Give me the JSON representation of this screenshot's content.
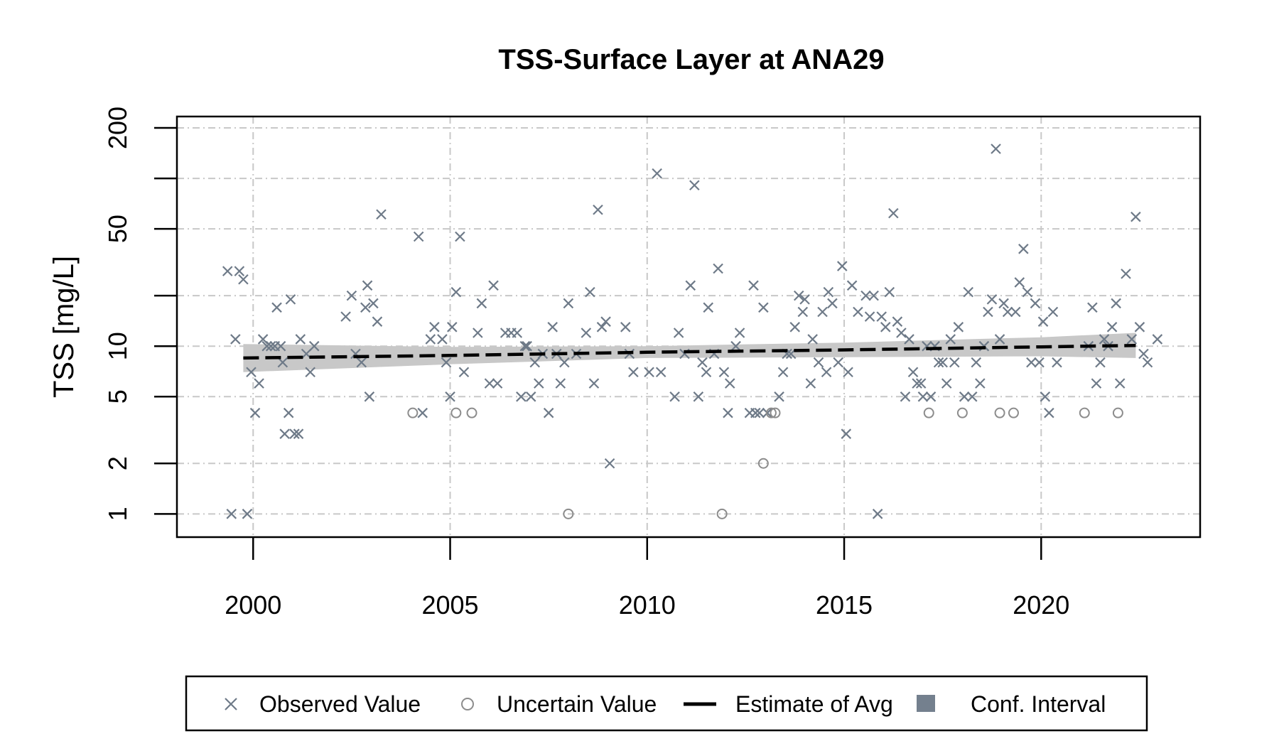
{
  "chart_data": {
    "type": "scatter",
    "title": "TSS-Surface Layer at ANA29",
    "xlabel": "",
    "ylabel": "TSS [mg/L]",
    "y_scale": "log",
    "xlim": [
      1998.3,
      2023.8
    ],
    "ylim": [
      0.85,
      200
    ],
    "x_ticks": [
      2000,
      2005,
      2010,
      2015,
      2020
    ],
    "x_tick_labels": [
      "2000",
      "2005",
      "2010",
      "2015",
      "2020"
    ],
    "y_ticks": [
      1,
      2,
      5,
      10,
      50,
      200
    ],
    "y_tick_labels": [
      "1",
      "2",
      "5",
      "10",
      "50",
      "200"
    ],
    "y_grid_lines": [
      1,
      2,
      5,
      10,
      20,
      50,
      100,
      200
    ],
    "grid": true,
    "legend_position": "bottom",
    "colors": {
      "observed": "#6e7a88",
      "uncertain": "#8c8c8c",
      "estimate": "#000000",
      "ci_band": "#c8c8c8",
      "ci_legend": "#74808e",
      "grid": "#c8c8c8"
    },
    "legend": [
      {
        "key": "observed",
        "label": "Observed Value",
        "symbol": "x"
      },
      {
        "key": "uncertain",
        "label": "Uncertain Value",
        "symbol": "circle"
      },
      {
        "key": "estimate",
        "label": "Estimate of Avg",
        "symbol": "dashed-line"
      },
      {
        "key": "ci",
        "label": "Conf. Interval",
        "symbol": "square"
      }
    ],
    "series": [
      {
        "name": "Observed Value",
        "marker": "x",
        "points": [
          [
            1999.35,
            28
          ],
          [
            1999.45,
            1
          ],
          [
            1999.55,
            11
          ],
          [
            1999.65,
            28
          ],
          [
            1999.75,
            25
          ],
          [
            1999.85,
            1
          ],
          [
            1999.95,
            7
          ],
          [
            2000.05,
            4
          ],
          [
            2000.15,
            6
          ],
          [
            2000.25,
            11
          ],
          [
            2000.35,
            10
          ],
          [
            2000.45,
            10
          ],
          [
            2000.55,
            10
          ],
          [
            2000.6,
            17
          ],
          [
            2000.7,
            10
          ],
          [
            2000.75,
            8
          ],
          [
            2000.8,
            3
          ],
          [
            2000.9,
            4
          ],
          [
            2000.95,
            19
          ],
          [
            2001.05,
            3
          ],
          [
            2001.15,
            3
          ],
          [
            2001.2,
            11
          ],
          [
            2001.35,
            9
          ],
          [
            2001.45,
            7
          ],
          [
            2001.55,
            10
          ],
          [
            2002.35,
            15
          ],
          [
            2002.5,
            20
          ],
          [
            2002.6,
            9
          ],
          [
            2002.75,
            8
          ],
          [
            2002.85,
            17
          ],
          [
            2002.9,
            23
          ],
          [
            2002.95,
            5
          ],
          [
            2003.05,
            18
          ],
          [
            2003.15,
            14
          ],
          [
            2003.25,
            61
          ],
          [
            2004.2,
            45
          ],
          [
            2004.3,
            4
          ],
          [
            2004.5,
            11
          ],
          [
            2004.6,
            13
          ],
          [
            2004.8,
            11
          ],
          [
            2004.9,
            8
          ],
          [
            2005.0,
            5
          ],
          [
            2005.05,
            13
          ],
          [
            2005.15,
            21
          ],
          [
            2005.25,
            45
          ],
          [
            2005.35,
            7
          ],
          [
            2005.7,
            12
          ],
          [
            2005.8,
            18
          ],
          [
            2006.0,
            6
          ],
          [
            2006.1,
            23
          ],
          [
            2006.2,
            6
          ],
          [
            2006.4,
            12
          ],
          [
            2006.55,
            12
          ],
          [
            2006.7,
            12
          ],
          [
            2006.8,
            5
          ],
          [
            2006.9,
            10
          ],
          [
            2006.95,
            10
          ],
          [
            2007.05,
            5
          ],
          [
            2007.15,
            8
          ],
          [
            2007.25,
            6
          ],
          [
            2007.35,
            9
          ],
          [
            2007.5,
            4
          ],
          [
            2007.6,
            13
          ],
          [
            2007.7,
            9
          ],
          [
            2007.8,
            6
          ],
          [
            2007.9,
            8
          ],
          [
            2008.0,
            18
          ],
          [
            2008.2,
            9
          ],
          [
            2008.45,
            12
          ],
          [
            2008.55,
            21
          ],
          [
            2008.65,
            6
          ],
          [
            2008.75,
            65
          ],
          [
            2008.85,
            13
          ],
          [
            2008.95,
            14
          ],
          [
            2009.05,
            2
          ],
          [
            2009.45,
            13
          ],
          [
            2009.55,
            9
          ],
          [
            2009.65,
            7
          ],
          [
            2010.05,
            7
          ],
          [
            2010.25,
            107
          ],
          [
            2010.35,
            7
          ],
          [
            2010.7,
            5
          ],
          [
            2010.8,
            12
          ],
          [
            2010.95,
            9
          ],
          [
            2011.1,
            23
          ],
          [
            2011.2,
            91
          ],
          [
            2011.3,
            5
          ],
          [
            2011.4,
            8
          ],
          [
            2011.5,
            7
          ],
          [
            2011.55,
            17
          ],
          [
            2011.7,
            9
          ],
          [
            2011.8,
            29
          ],
          [
            2011.95,
            7
          ],
          [
            2012.05,
            4
          ],
          [
            2012.1,
            6
          ],
          [
            2012.25,
            10
          ],
          [
            2012.35,
            12
          ],
          [
            2012.6,
            4
          ],
          [
            2012.7,
            23
          ],
          [
            2012.75,
            4
          ],
          [
            2012.85,
            4
          ],
          [
            2012.95,
            17
          ],
          [
            2013.05,
            4
          ],
          [
            2013.35,
            5
          ],
          [
            2013.45,
            7
          ],
          [
            2013.55,
            9
          ],
          [
            2013.65,
            9
          ],
          [
            2013.75,
            13
          ],
          [
            2013.85,
            20
          ],
          [
            2013.95,
            16
          ],
          [
            2014.0,
            19
          ],
          [
            2014.15,
            6
          ],
          [
            2014.2,
            11
          ],
          [
            2014.35,
            8
          ],
          [
            2014.45,
            16
          ],
          [
            2014.55,
            7
          ],
          [
            2014.6,
            21
          ],
          [
            2014.7,
            18
          ],
          [
            2014.85,
            8
          ],
          [
            2014.95,
            30
          ],
          [
            2015.05,
            3
          ],
          [
            2015.1,
            7
          ],
          [
            2015.2,
            23
          ],
          [
            2015.35,
            16
          ],
          [
            2015.55,
            20
          ],
          [
            2015.65,
            15
          ],
          [
            2015.75,
            20
          ],
          [
            2015.85,
            1
          ],
          [
            2015.95,
            15
          ],
          [
            2016.05,
            13
          ],
          [
            2016.15,
            21
          ],
          [
            2016.25,
            62
          ],
          [
            2016.35,
            14
          ],
          [
            2016.45,
            12
          ],
          [
            2016.55,
            5
          ],
          [
            2016.65,
            11
          ],
          [
            2016.75,
            7
          ],
          [
            2016.85,
            6
          ],
          [
            2016.95,
            6
          ],
          [
            2017.0,
            5
          ],
          [
            2017.1,
            10
          ],
          [
            2017.2,
            5
          ],
          [
            2017.3,
            10
          ],
          [
            2017.4,
            8
          ],
          [
            2017.5,
            8
          ],
          [
            2017.6,
            6
          ],
          [
            2017.7,
            11
          ],
          [
            2017.8,
            8
          ],
          [
            2017.9,
            13
          ],
          [
            2018.05,
            5
          ],
          [
            2018.15,
            21
          ],
          [
            2018.25,
            5
          ],
          [
            2018.35,
            8
          ],
          [
            2018.45,
            6
          ],
          [
            2018.55,
            10
          ],
          [
            2018.65,
            16
          ],
          [
            2018.75,
            19
          ],
          [
            2018.85,
            150
          ],
          [
            2018.95,
            11
          ],
          [
            2019.05,
            18
          ],
          [
            2019.15,
            16
          ],
          [
            2019.35,
            16
          ],
          [
            2019.45,
            24
          ],
          [
            2019.55,
            38
          ],
          [
            2019.65,
            21
          ],
          [
            2019.75,
            8
          ],
          [
            2019.85,
            18
          ],
          [
            2019.95,
            8
          ],
          [
            2020.05,
            14
          ],
          [
            2020.1,
            5
          ],
          [
            2020.2,
            4
          ],
          [
            2020.3,
            16
          ],
          [
            2020.4,
            8
          ],
          [
            2021.2,
            10
          ],
          [
            2021.3,
            17
          ],
          [
            2021.4,
            6
          ],
          [
            2021.5,
            8
          ],
          [
            2021.6,
            11
          ],
          [
            2021.7,
            10
          ],
          [
            2021.8,
            13
          ],
          [
            2021.9,
            18
          ],
          [
            2022.0,
            6
          ],
          [
            2022.15,
            27
          ],
          [
            2022.3,
            11
          ],
          [
            2022.4,
            59
          ],
          [
            2022.5,
            13
          ],
          [
            2022.6,
            9
          ],
          [
            2022.7,
            8
          ],
          [
            2022.95,
            11
          ]
        ]
      },
      {
        "name": "Uncertain Value",
        "marker": "circle",
        "points": [
          [
            2004.05,
            4
          ],
          [
            2005.15,
            4
          ],
          [
            2005.55,
            4
          ],
          [
            2008.0,
            1
          ],
          [
            2011.9,
            1
          ],
          [
            2012.95,
            2
          ],
          [
            2013.15,
            4
          ],
          [
            2013.25,
            4
          ],
          [
            2017.15,
            4
          ],
          [
            2018.0,
            4
          ],
          [
            2018.95,
            4
          ],
          [
            2019.3,
            4
          ],
          [
            2021.1,
            4
          ],
          [
            2021.95,
            4
          ]
        ]
      }
    ],
    "trend": {
      "name": "Estimate of Avg",
      "x": [
        1999.75,
        2005,
        2010,
        2015,
        2020,
        2022.4
      ],
      "y": [
        8.5,
        8.8,
        9.2,
        9.5,
        9.9,
        10.1
      ]
    },
    "conf_interval": {
      "name": "Conf. Interval",
      "x": [
        1999.75,
        2005,
        2010,
        2015,
        2020,
        2022.4
      ],
      "lower": [
        7.0,
        7.8,
        8.5,
        8.6,
        8.7,
        8.5
      ],
      "upper": [
        10.3,
        9.9,
        10.0,
        10.5,
        11.3,
        12.0
      ]
    }
  }
}
